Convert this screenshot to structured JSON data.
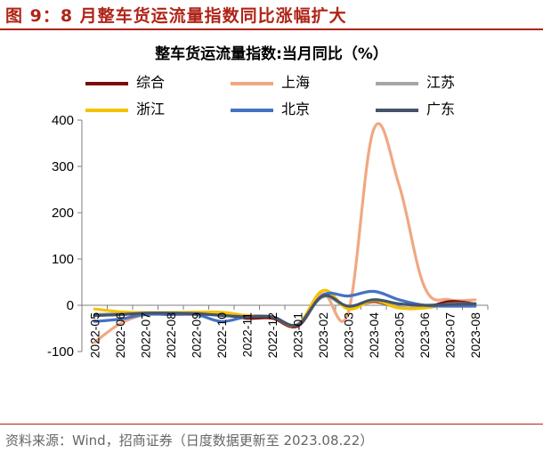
{
  "figure": {
    "title": "图 9：8 月整车货运流量指数同比涨幅扩大",
    "accent_color": "#b02418"
  },
  "source": "资料来源：Wind，招商证券（日度数据更新至 2023.08.22）",
  "chart_data": {
    "type": "line",
    "title": "整车货运流量指数:当月同比（%）",
    "xlabel": "",
    "ylabel": "",
    "ylim": [
      -100,
      400
    ],
    "yticks": [
      400,
      300,
      200,
      100,
      0,
      -100
    ],
    "categories": [
      "2022-05",
      "2022-06",
      "2022-07",
      "2022-08",
      "2022-09",
      "2022-10",
      "2022-11",
      "2022-12",
      "2023-01",
      "2023-02",
      "2023-03",
      "2023-04",
      "2023-05",
      "2023-06",
      "2023-07",
      "2023-08"
    ],
    "legend_position": "top",
    "grid": false,
    "series": [
      {
        "name": "综合",
        "color": "#7a0c0c",
        "values": [
          -22,
          -20,
          -18,
          -18,
          -17,
          -20,
          -28,
          -28,
          -45,
          20,
          -5,
          8,
          -5,
          -5,
          8,
          3
        ]
      },
      {
        "name": "上海",
        "color": "#f0a882",
        "values": [
          -80,
          -40,
          -20,
          -20,
          -20,
          -20,
          -25,
          -25,
          -45,
          25,
          -15,
          380,
          260,
          40,
          12,
          12
        ]
      },
      {
        "name": "江苏",
        "color": "#a6a6a6",
        "values": [
          -20,
          -18,
          -16,
          -16,
          -15,
          -16,
          -24,
          -25,
          -42,
          18,
          -4,
          12,
          -4,
          -5,
          3,
          3
        ]
      },
      {
        "name": "浙江",
        "color": "#f5c200",
        "values": [
          -8,
          -14,
          -16,
          -16,
          -15,
          -15,
          -22,
          -25,
          -42,
          32,
          -8,
          10,
          -6,
          -6,
          2,
          2
        ]
      },
      {
        "name": "北京",
        "color": "#4472c4",
        "values": [
          -35,
          -30,
          -20,
          -20,
          -20,
          -35,
          -25,
          -25,
          -42,
          22,
          20,
          30,
          12,
          0,
          -2,
          -2
        ]
      },
      {
        "name": "广东",
        "color": "#44546a",
        "values": [
          -22,
          -20,
          -17,
          -17,
          -18,
          -22,
          -25,
          -25,
          -42,
          20,
          -2,
          12,
          3,
          0,
          2,
          3
        ]
      }
    ]
  }
}
